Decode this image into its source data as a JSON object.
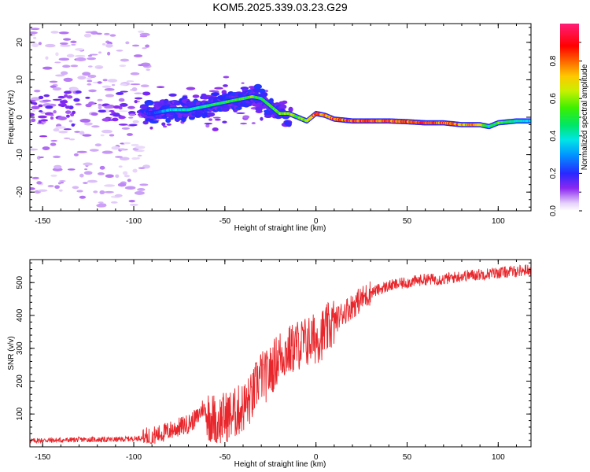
{
  "figure": {
    "title": "KOM5.2025.339.03.23.G29"
  },
  "chart_data": [
    {
      "type": "heatmap",
      "name": "spectrogram",
      "title": "KOM5.2025.339.03.23.G29",
      "xlabel": "Height of straight line (km)",
      "ylabel": "Frequency (Hz)",
      "xlim": [
        -157,
        118
      ],
      "ylim": [
        -25,
        25
      ],
      "xticks": [
        -150,
        -100,
        -50,
        0,
        50,
        100
      ],
      "yticks": [
        -20,
        -10,
        0,
        10,
        20
      ],
      "colorbar": {
        "label": "Normalized spectral amplitude",
        "range": [
          0,
          1
        ],
        "ticks": [
          "0.0",
          "0.2",
          "0.4",
          "0.6",
          "0.8"
        ]
      },
      "ridge": {
        "description": "dominant frequency track of the spectral amplitude",
        "x": [
          -90,
          -80,
          -70,
          -60,
          -50,
          -40,
          -35,
          -30,
          -25,
          -20,
          -15,
          -10,
          -5,
          0,
          5,
          10,
          20,
          30,
          40,
          50,
          60,
          70,
          80,
          90,
          95,
          100,
          110,
          118
        ],
        "y": [
          1,
          2,
          2,
          3,
          4,
          5,
          5.5,
          5,
          3,
          1,
          1,
          0,
          -1,
          1,
          0.5,
          -0.5,
          -1,
          -1,
          -1,
          -1.2,
          -1.5,
          -1.5,
          -2,
          -2,
          -2.5,
          -1.5,
          -1,
          -1
        ],
        "amplitude": [
          0.2,
          0.35,
          0.4,
          0.45,
          0.5,
          0.5,
          0.55,
          0.45,
          0.5,
          0.55,
          0.6,
          0.55,
          0.6,
          0.8,
          0.75,
          0.8,
          0.85,
          0.85,
          0.85,
          0.8,
          0.85,
          0.8,
          0.75,
          0.7,
          0.4,
          0.55,
          0.4,
          0.35
        ]
      }
    },
    {
      "type": "line",
      "name": "snr",
      "xlabel": "Height of straight line (km)",
      "ylabel": "SNR (v/v)",
      "xlim": [
        -157,
        118
      ],
      "ylim": [
        0,
        570
      ],
      "xticks": [
        -150,
        -100,
        -50,
        0,
        50,
        100
      ],
      "yticks": [
        100,
        200,
        300,
        400,
        500
      ],
      "color": "#e8262b",
      "series": [
        {
          "name": "SNR",
          "x": [
            -157,
            -150,
            -140,
            -130,
            -120,
            -110,
            -100,
            -95,
            -90,
            -85,
            -80,
            -75,
            -70,
            -65,
            -62,
            -60,
            -55,
            -50,
            -45,
            -40,
            -35,
            -32,
            -30,
            -28,
            -25,
            -22,
            -20,
            -15,
            -10,
            -5,
            0,
            5,
            10,
            15,
            20,
            25,
            30,
            40,
            50,
            60,
            70,
            80,
            90,
            100,
            110,
            118
          ],
          "y": [
            18,
            20,
            20,
            22,
            22,
            22,
            25,
            28,
            32,
            40,
            50,
            60,
            70,
            90,
            120,
            100,
            80,
            90,
            100,
            120,
            150,
            200,
            220,
            210,
            230,
            260,
            280,
            290,
            310,
            320,
            330,
            350,
            380,
            410,
            430,
            450,
            470,
            490,
            500,
            510,
            510,
            520,
            525,
            530,
            535,
            540
          ]
        }
      ]
    }
  ]
}
